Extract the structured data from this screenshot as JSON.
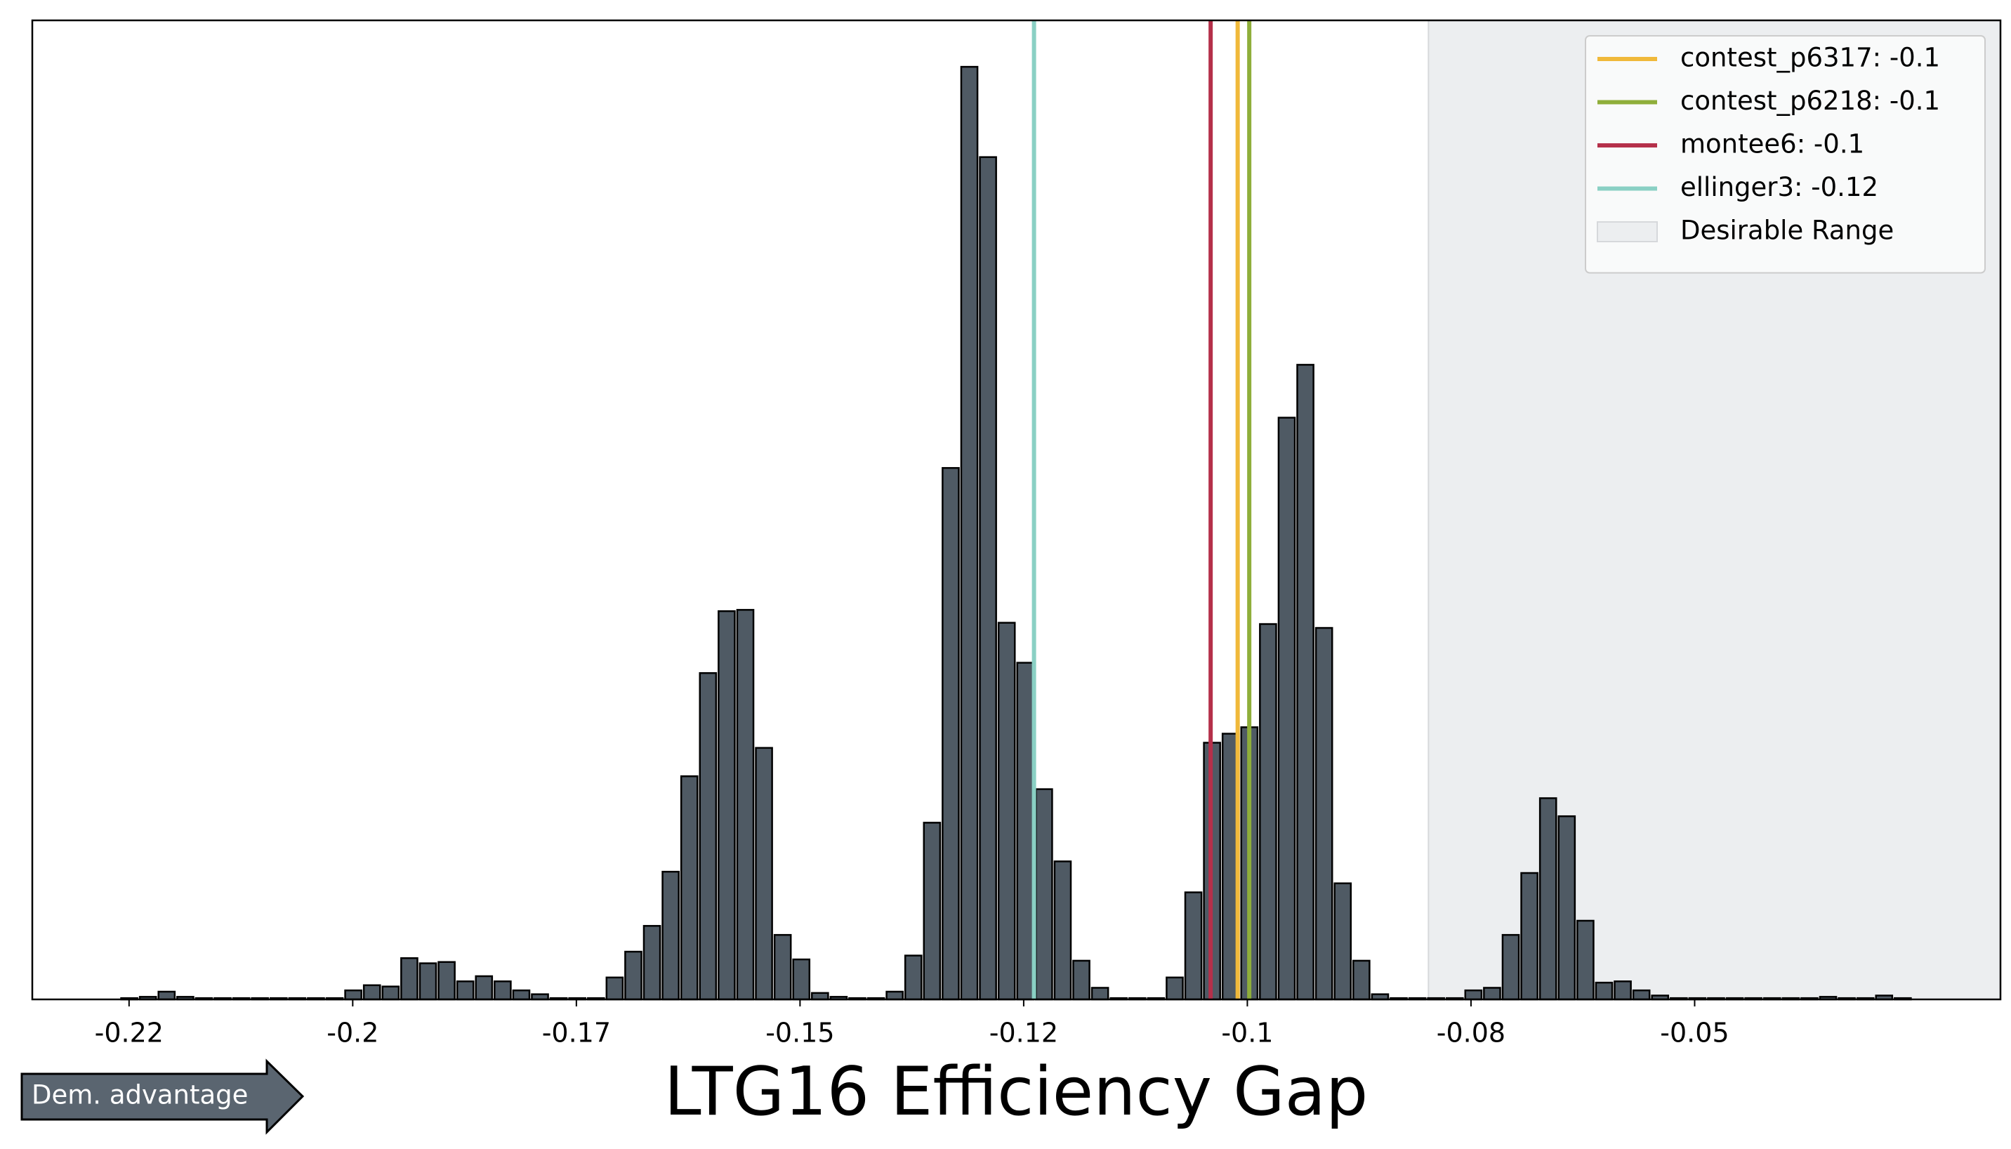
{
  "chart_data": {
    "type": "histogram",
    "xlabel": "LTG16 Efficiency Gap",
    "annotation": "Dem. advantage",
    "bins": [
      -0.2235,
      -0.221455,
      -0.21941,
      -0.217365,
      -0.21532,
      -0.213275,
      -0.21123,
      -0.209185,
      -0.20714,
      -0.205095,
      -0.20305,
      -0.201005,
      -0.19896,
      -0.196915,
      -0.19487,
      -0.192825,
      -0.19078,
      -0.188735,
      -0.18669,
      -0.184645,
      -0.1826,
      -0.180555,
      -0.17851,
      -0.176465,
      -0.17442,
      -0.172375,
      -0.17033,
      -0.168285,
      -0.16624,
      -0.164195,
      -0.16215,
      -0.160105,
      -0.15806,
      -0.156015,
      -0.15397,
      -0.151925,
      -0.14988,
      -0.147835,
      -0.14579,
      -0.143745,
      -0.1417,
      -0.139655,
      -0.13761,
      -0.135565,
      -0.13352,
      -0.131475,
      -0.12943,
      -0.127385,
      -0.12534,
      -0.123295,
      -0.12125,
      -0.119205,
      -0.11716,
      -0.115115,
      -0.11307,
      -0.111025,
      -0.10898,
      -0.106935,
      -0.10489,
      -0.102845,
      -0.1008,
      -0.098755,
      -0.09671,
      -0.094665,
      -0.09262,
      -0.090575,
      -0.08853,
      -0.086485,
      -0.08444,
      -0.082395,
      -0.08035,
      -0.078305,
      -0.07626,
      -0.074215,
      -0.07217,
      -0.070125,
      -0.06808,
      -0.066035,
      -0.06399,
      -0.061945,
      -0.0599,
      -0.057855,
      -0.05581,
      -0.053765,
      -0.05172,
      -0.049675,
      -0.04763,
      -0.045585,
      -0.04354,
      -0.041495,
      -0.03945,
      -0.037405,
      -0.03536,
      -0.033315,
      -0.03127,
      -0.029225,
      -0.02718
    ],
    "values": [
      1,
      2,
      6,
      2,
      1,
      1,
      1,
      1,
      1,
      1,
      1,
      1,
      7,
      11,
      10,
      32,
      28,
      29,
      14,
      18,
      14,
      7,
      4,
      1,
      1,
      1,
      17,
      37,
      57,
      99,
      173,
      253,
      301,
      302,
      195,
      50,
      31,
      5,
      2,
      1,
      1,
      6,
      34,
      137,
      412,
      723,
      653,
      292,
      261,
      163,
      107,
      30,
      9,
      1,
      1,
      1,
      17,
      83,
      199,
      206,
      211,
      291,
      451,
      492,
      288,
      90,
      30,
      4,
      1,
      1,
      1,
      1,
      7,
      9,
      50,
      98,
      156,
      142,
      61,
      13,
      14,
      7,
      3,
      1,
      1,
      1,
      1,
      1,
      1,
      1,
      1,
      2,
      1,
      1,
      3,
      1
    ],
    "color": "#4f5a64",
    "edgecolor": "#000000",
    "xlim": [
      -0.2331,
      -0.0175
    ],
    "ylim": [
      0,
      759
    ],
    "xticks": [
      {
        "value": -0.2225,
        "label": "-0.22"
      },
      {
        "value": -0.198,
        "label": "-0.2"
      },
      {
        "value": -0.1735,
        "label": "-0.17"
      },
      {
        "value": -0.149,
        "label": "-0.15"
      },
      {
        "value": -0.1245,
        "label": "-0.12"
      },
      {
        "value": -0.1,
        "label": "-0.1"
      },
      {
        "value": -0.0755,
        "label": "-0.08"
      },
      {
        "value": -0.051,
        "label": "-0.05"
      }
    ],
    "vlines": [
      {
        "name": "contest_p6317: -0.1",
        "value": -0.10106,
        "color": "#f0b93a"
      },
      {
        "name": "contest_p6218: -0.1",
        "value": -0.09979,
        "color": "#8fae3a"
      },
      {
        "name": "montee6: -0.1",
        "value": -0.10402,
        "color": "#b5304a"
      },
      {
        "name": "ellinger3: -0.12",
        "value": -0.12337,
        "color": "#8ad0c4"
      }
    ],
    "span": {
      "name": "Desirable Range",
      "range": [
        -0.08016,
        -0.0175
      ],
      "color": "#eceef0"
    },
    "legend": "upper right"
  }
}
